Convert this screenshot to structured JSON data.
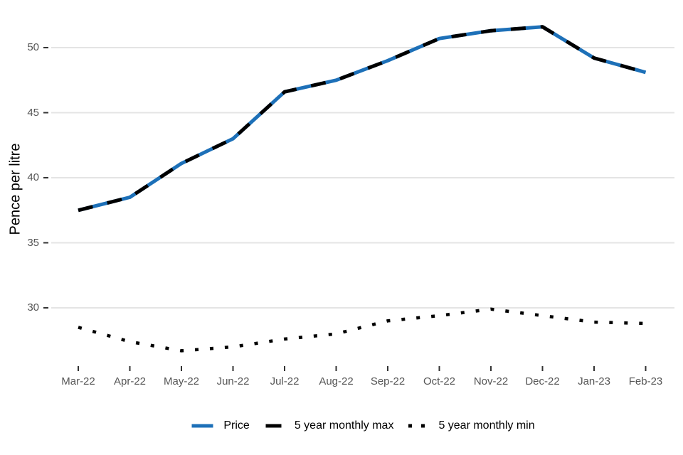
{
  "chart_data": {
    "type": "line",
    "title": "",
    "xlabel": "",
    "ylabel": "Pence per litre",
    "categories": [
      "Mar-22",
      "Apr-22",
      "May-22",
      "Jun-22",
      "Jul-22",
      "Aug-22",
      "Sep-22",
      "Oct-22",
      "Nov-22",
      "Dec-22",
      "Jan-23",
      "Feb-23"
    ],
    "y_ticks": [
      50,
      45,
      40,
      35,
      30
    ],
    "ylim": [
      26,
      53
    ],
    "grid": "horizontal-only",
    "legend_position": "bottom",
    "series": [
      {
        "name": "Price",
        "color": "#1d70b8",
        "line_style": "solid",
        "width": 5,
        "values": [
          37.5,
          38.5,
          41.1,
          43.0,
          46.6,
          47.5,
          49.0,
          50.7,
          51.3,
          51.6,
          49.2,
          48.1
        ]
      },
      {
        "name": "5 year monthly max",
        "color": "#000000",
        "line_style": "dashed",
        "width": 5,
        "values": [
          37.5,
          38.5,
          41.1,
          43.0,
          46.6,
          47.5,
          49.0,
          50.7,
          51.3,
          51.6,
          49.2,
          48.1
        ]
      },
      {
        "name": "5 year monthly min",
        "color": "#000000",
        "line_style": "dotted",
        "width": 4.5,
        "values": [
          28.5,
          27.4,
          26.7,
          27.0,
          27.6,
          28.0,
          29.0,
          29.4,
          29.9,
          29.4,
          28.9,
          28.8
        ]
      }
    ]
  },
  "colors": {
    "price_blue": "#1d70b8",
    "line_black": "#000000",
    "gridline": "#e4e4e4",
    "tick_mark": "#333333",
    "tick_label": "#555555",
    "axis_title": "#000000",
    "background": "#ffffff"
  }
}
